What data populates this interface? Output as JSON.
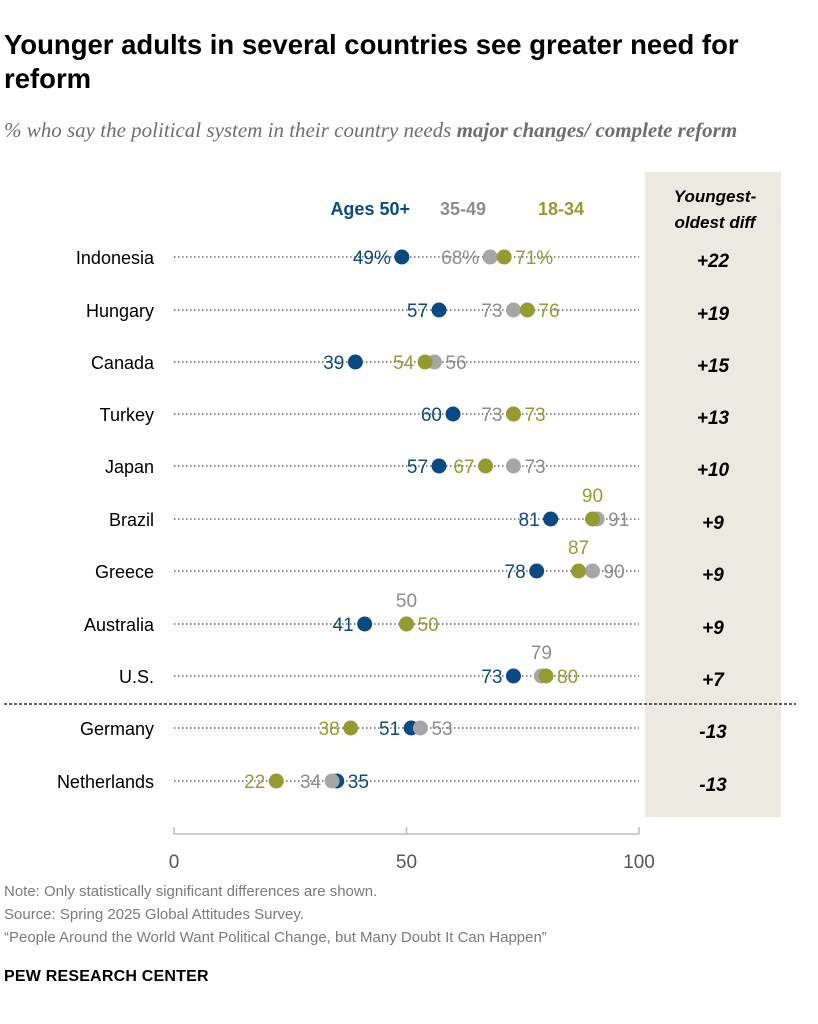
{
  "title": "Younger adults in several countries see greater need for reform",
  "subtitle_plain": "% who say the political system in their country needs ",
  "subtitle_bold": "major changes/ complete reform",
  "notes": [
    "Note: Only statistically significant differences are shown.",
    "Source: Spring 2025 Global Attitudes Survey.",
    "“People Around the World Want Political Change, but Many Doubt It Can Happen”"
  ],
  "brand": "PEW RESEARCH CENTER",
  "colors": {
    "old": "#0b4a80",
    "mid": "#a6a6a6",
    "young": "#949b33",
    "diff_bg": "#ece9e0",
    "dots": "#8c8c8c"
  },
  "chart_data": {
    "type": "dot",
    "legend": {
      "old": "Ages 50+",
      "mid": "35-49",
      "young": "18-34"
    },
    "diff_header": [
      "Youngest-",
      "oldest diff"
    ],
    "xlim": [
      0,
      100
    ],
    "xticks": [
      "0",
      "50",
      "100"
    ],
    "rows": [
      {
        "country": "Indonesia",
        "old": 49,
        "mid": 68,
        "young": 71,
        "diff": "+22",
        "pct": true,
        "pos": {
          "old": "left",
          "mid": "left",
          "young": "right"
        }
      },
      {
        "country": "Hungary",
        "old": 57,
        "mid": 73,
        "young": 76,
        "diff": "+19",
        "pos": {
          "old": "left",
          "mid": "left",
          "young": "right"
        }
      },
      {
        "country": "Canada",
        "old": 39,
        "mid": 56,
        "young": 54,
        "diff": "+15",
        "pos": {
          "old": "left",
          "mid": "right",
          "young": "left"
        }
      },
      {
        "country": "Turkey",
        "old": 60,
        "mid": 73,
        "young": 73,
        "diff": "+13",
        "pos": {
          "old": "left",
          "mid": "left",
          "young": "right"
        }
      },
      {
        "country": "Japan",
        "old": 57,
        "mid": 73,
        "young": 67,
        "diff": "+10",
        "pos": {
          "old": "left",
          "mid": "right",
          "young": "left"
        }
      },
      {
        "country": "Brazil",
        "old": 81,
        "mid": 91,
        "young": 90,
        "diff": "+9",
        "pos": {
          "old": "left",
          "mid": "right",
          "young": "above"
        }
      },
      {
        "country": "Greece",
        "old": 78,
        "mid": 90,
        "young": 87,
        "diff": "+9",
        "pos": {
          "old": "left",
          "mid": "right",
          "young": "above"
        }
      },
      {
        "country": "Australia",
        "old": 41,
        "mid": 50,
        "young": 50,
        "diff": "+9",
        "pos": {
          "old": "left",
          "mid": "above",
          "young": "right"
        }
      },
      {
        "country": "U.S.",
        "old": 73,
        "mid": 79,
        "young": 80,
        "diff": "+7",
        "pos": {
          "old": "left",
          "mid": "above",
          "young": "right"
        }
      },
      {
        "country": "Germany",
        "old": 51,
        "mid": 53,
        "young": 38,
        "diff": "-13",
        "pos": {
          "old": "left",
          "mid": "right",
          "young": "left"
        }
      },
      {
        "country": "Netherlands",
        "old": 35,
        "mid": 34,
        "young": 22,
        "diff": "-13",
        "pos": {
          "old": "right",
          "mid": "left",
          "young": "left"
        }
      }
    ]
  }
}
